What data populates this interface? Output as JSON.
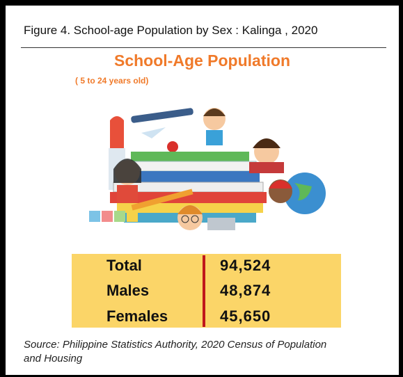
{
  "figure_title": "Figure 4. School-age Population by Sex : Kalinga , 2020",
  "heading": "School-Age Population",
  "subtitle": "( 5 to 24 years old)",
  "table": {
    "rows": [
      [
        "Total",
        "94,524"
      ],
      [
        "Males",
        "48,874"
      ],
      [
        "Females",
        "45,650"
      ]
    ]
  },
  "source": "Source: Philippine Statistics Authority, 2020 Census of Population and Housing"
}
